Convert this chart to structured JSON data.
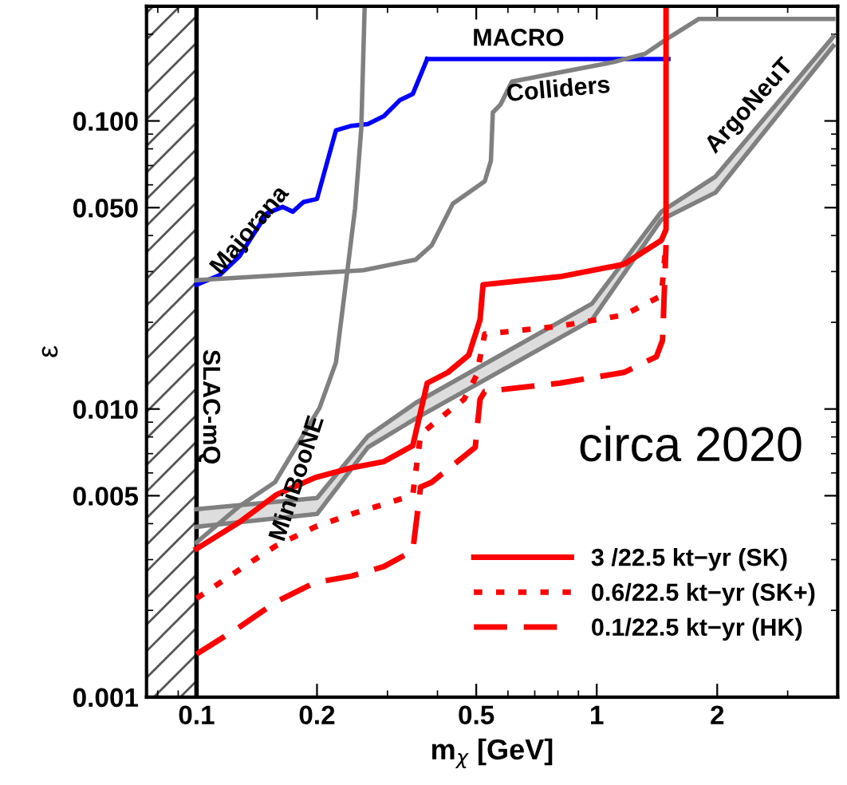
{
  "chart_data": {
    "type": "line",
    "xlabel": "m$_{χ}$ [GeV]",
    "ylabel": "ε",
    "log": "xy",
    "xlim": [
      0.075,
      4
    ],
    "ylim": [
      0.001,
      0.25
    ],
    "xticks": [
      0.1,
      0.2,
      0.5,
      1,
      2
    ],
    "yticks": [
      {
        "value": 0.001,
        "label": "0.001"
      },
      {
        "value": 0.005,
        "label": "0.005"
      },
      {
        "value": 0.01,
        "label": "0.010"
      },
      {
        "value": 0.05,
        "label": "0.050"
      },
      {
        "value": 0.1,
        "label": "0.100"
      }
    ],
    "grid": false,
    "legend": "bottom right",
    "bands": [
      {
        "axis": "x",
        "from": 0.075,
        "to": 0.1,
        "color": "#555555"
      }
    ],
    "ref_lines": [
      {
        "axis": "x",
        "value": 0.1,
        "label": "SLAC-mQ",
        "color": "#000000"
      }
    ],
    "series": [
      {
        "color": "#0000ff",
        "line_style": "solid",
        "x": [
          0.1,
          0.114,
          0.128,
          0.15,
          0.164,
          0.174,
          0.185,
          0.2,
          0.223,
          0.244,
          0.268,
          0.294,
          0.322,
          0.347,
          0.377
        ],
        "values": [
          0.027,
          0.0291,
          0.0339,
          0.0478,
          0.0503,
          0.0484,
          0.0523,
          0.0536,
          0.0927,
          0.0962,
          0.0975,
          0.104,
          0.118,
          0.124,
          0.164
        ]
      },
      {
        "color": "#0000ff",
        "line_style": "solid",
        "x": [
          0.377,
          1.51
        ],
        "values": [
          0.164,
          0.164
        ]
      },
      {
        "color": "#808080",
        "line_style": "solid",
        "x": [
          0.1,
          0.261,
          0.353,
          0.387,
          0.425,
          0.437,
          0.525,
          0.544,
          0.55,
          0.575,
          0.614,
          0.863,
          1.1,
          1.32,
          1.51,
          1.8,
          3.9
        ],
        "values": [
          0.028,
          0.0303,
          0.033,
          0.037,
          0.0478,
          0.0516,
          0.0617,
          0.0728,
          0.107,
          0.114,
          0.137,
          0.15,
          0.16,
          0.171,
          0.194,
          0.226,
          0.226
        ]
      },
      {
        "color": "#808080",
        "line_style": "solid",
        "x": [
          0.263,
          0.258,
          0.249,
          0.238,
          0.223,
          0.203,
          0.157,
          0.128,
          0.1
        ],
        "values": [
          0.245,
          0.0938,
          0.0497,
          0.0299,
          0.0145,
          0.0101,
          0.00557,
          0.0046,
          0.00344
        ]
      },
      {
        "color": "#808080",
        "line_style": "solid",
        "x": [
          0.1,
          0.2,
          0.268,
          0.353,
          0.973,
          1.45,
          1.98,
          3.9
        ],
        "values": [
          0.00449,
          0.00491,
          0.00805,
          0.0105,
          0.0232,
          0.0484,
          0.0641,
          0.196
        ],
        "upper": [
          0.00449,
          0.00491,
          0.00805,
          0.0105,
          0.0232,
          0.0484,
          0.0641,
          0.196
        ],
        "lower": [
          0.0039,
          0.00432,
          0.00736,
          0.00927,
          0.0204,
          0.0454,
          0.0564,
          0.182
        ]
      },
      {
        "color": "#808080",
        "line_style": "solid",
        "x": [
          0.1,
          0.2,
          0.268,
          0.353,
          0.973,
          1.45,
          1.98,
          3.9
        ],
        "values": [
          0.0039,
          0.00432,
          0.00736,
          0.00927,
          0.0204,
          0.0454,
          0.0564,
          0.182
        ]
      },
      {
        "name": "3 /22.5 kt−yr (SK)",
        "color": "#ff0000",
        "line_style": "solid",
        "x": [
          0.1,
          0.128,
          0.158,
          0.198,
          0.244,
          0.294,
          0.347,
          0.377,
          0.425,
          0.479,
          0.511,
          0.52,
          0.809,
          1.17,
          1.45,
          1.49,
          1.49
        ],
        "values": [
          0.00327,
          0.00405,
          0.00503,
          0.00578,
          0.00625,
          0.00657,
          0.00746,
          0.0123,
          0.0134,
          0.0154,
          0.0204,
          0.027,
          0.0288,
          0.0318,
          0.0385,
          0.042,
          0.25
        ]
      },
      {
        "name": "0.6/22.5 kt−yr (SK+)",
        "color": "#ff0000",
        "line_style": "dotted",
        "x": [
          0.1,
          0.128,
          0.158,
          0.198,
          0.244,
          0.294,
          0.347,
          0.363,
          0.405,
          0.466,
          0.501,
          0.525,
          0.809,
          1.17,
          1.45,
          1.49
        ],
        "values": [
          0.0022,
          0.00277,
          0.00335,
          0.0039,
          0.00432,
          0.00467,
          0.00503,
          0.00816,
          0.00927,
          0.0108,
          0.0131,
          0.0182,
          0.0194,
          0.0212,
          0.0247,
          0.0376
        ]
      },
      {
        "name": "0.1/22.5 kt−yr (HK)",
        "color": "#ff0000",
        "line_style": "dashed",
        "x": [
          0.1,
          0.128,
          0.158,
          0.198,
          0.244,
          0.294,
          0.347,
          0.363,
          0.387,
          0.497,
          0.511,
          0.525,
          0.809,
          1.17,
          1.41,
          1.46,
          1.49
        ],
        "values": [
          0.00141,
          0.00175,
          0.00214,
          0.0025,
          0.00263,
          0.00284,
          0.00322,
          0.00536,
          0.00557,
          0.00736,
          0.0108,
          0.0115,
          0.0123,
          0.0134,
          0.0152,
          0.0173,
          0.0371
        ]
      }
    ],
    "annotations": [
      "Majorana",
      "MACRO",
      "Colliders",
      "MiniBooNE",
      "ArgoNeuT",
      "circa 2020"
    ]
  }
}
